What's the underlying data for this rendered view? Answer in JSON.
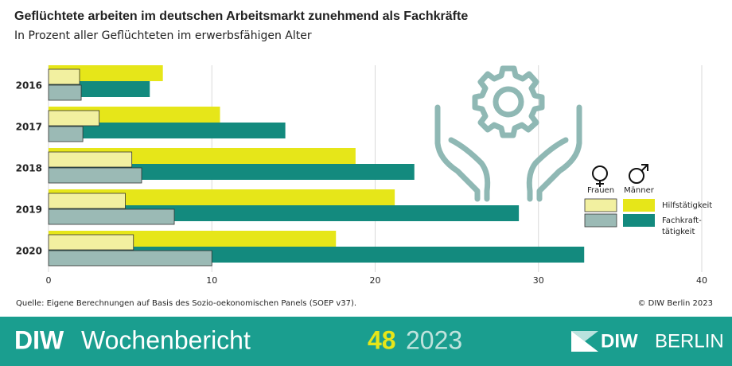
{
  "chart_data": {
    "type": "bar",
    "orientation": "horizontal",
    "title": "Geflüchtete arbeiten im deutschen Arbeitsmarkt zunehmend als Fachkräfte",
    "subtitle": "In Prozent aller Geflüchteten im erwerbsfähigen Alter",
    "categories": [
      "2016",
      "2017",
      "2018",
      "2019",
      "2020"
    ],
    "legend": {
      "groups": [
        "Frauen",
        "Männer"
      ],
      "kinds": [
        "Hilfstätigkeit",
        "Fachkraft-tätigkeit"
      ]
    },
    "series": [
      {
        "group": 1,
        "kind": 0,
        "color": "#e6e619",
        "values": [
          7.0,
          10.5,
          18.8,
          21.2,
          17.6
        ]
      },
      {
        "group": 1,
        "kind": 1,
        "color": "#138a7e",
        "values": [
          6.2,
          14.5,
          22.4,
          28.8,
          32.8
        ]
      },
      {
        "group": 0,
        "kind": 0,
        "color": "#f2f0a0",
        "values": [
          1.9,
          3.1,
          5.1,
          4.7,
          5.2
        ]
      },
      {
        "group": 0,
        "kind": 1,
        "color": "#9bbab5",
        "values": [
          2.0,
          2.1,
          5.7,
          7.7,
          10.0
        ]
      }
    ],
    "xlim": [
      0,
      40
    ],
    "xticks": [
      0,
      10,
      20,
      30,
      40
    ],
    "grid": true,
    "source": "Quelle: Eigene Berechnungen auf Basis des Sozio-oekonomischen Panels (SOEP v37).",
    "copyright": "© DIW Berlin 2023"
  },
  "footer": {
    "brand_bold": "DIW",
    "brand": "Wochenbericht",
    "issue": "48",
    "year": "2023",
    "logo_bold": "DIW",
    "logo": "BERLIN"
  }
}
